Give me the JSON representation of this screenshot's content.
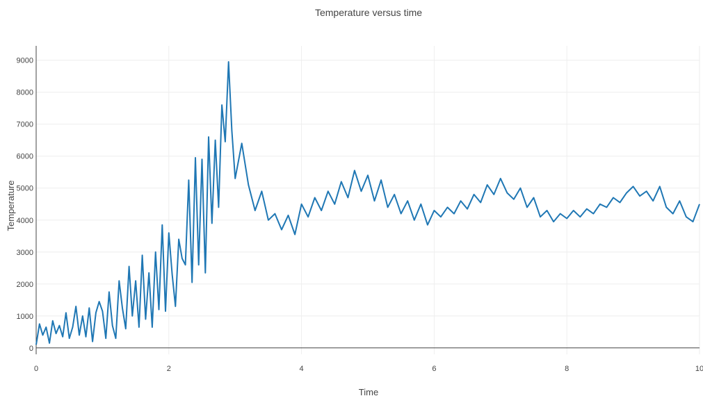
{
  "chart_data": {
    "type": "line",
    "title": "Temperature versus time",
    "xlabel": "Time",
    "ylabel": "Temperature",
    "xlim": [
      0,
      10
    ],
    "ylim": [
      -200,
      9450
    ],
    "xticks": [
      0,
      2,
      4,
      6,
      8,
      10
    ],
    "yticks": [
      0,
      1000,
      2000,
      3000,
      4000,
      5000,
      6000,
      7000,
      8000,
      9000
    ],
    "grid": true,
    "line_color": "#1f77b4",
    "series": [
      {
        "x": [
          0,
          0.05,
          0.1,
          0.15,
          0.2,
          0.25,
          0.3,
          0.35,
          0.4,
          0.45,
          0.5,
          0.55,
          0.6,
          0.65,
          0.7,
          0.75,
          0.8,
          0.85,
          0.9,
          0.95,
          1.0,
          1.05,
          1.1,
          1.15,
          1.2,
          1.25,
          1.3,
          1.35,
          1.4,
          1.45,
          1.5,
          1.55,
          1.6,
          1.65,
          1.7,
          1.75,
          1.8,
          1.85,
          1.9,
          1.95,
          2.0,
          2.05,
          2.1,
          2.15,
          2.2,
          2.25,
          2.3,
          2.35,
          2.4,
          2.45,
          2.5,
          2.55,
          2.6,
          2.65,
          2.7,
          2.75,
          2.8,
          2.85,
          2.9,
          2.95,
          3.0,
          3.1,
          3.2,
          3.3,
          3.4,
          3.5,
          3.6,
          3.7,
          3.8,
          3.9,
          4.0,
          4.1,
          4.2,
          4.3,
          4.4,
          4.5,
          4.6,
          4.7,
          4.8,
          4.9,
          5.0,
          5.1,
          5.2,
          5.3,
          5.4,
          5.5,
          5.6,
          5.7,
          5.8,
          5.9,
          6.0,
          6.1,
          6.2,
          6.3,
          6.4,
          6.5,
          6.6,
          6.7,
          6.8,
          6.9,
          7.0,
          7.1,
          7.2,
          7.3,
          7.4,
          7.5,
          7.6,
          7.7,
          7.8,
          7.9,
          8.0,
          8.1,
          8.2,
          8.3,
          8.4,
          8.5,
          8.6,
          8.7,
          8.8,
          8.9,
          9.0,
          9.1,
          9.2,
          9.3,
          9.4,
          9.5,
          9.6,
          9.7,
          9.8,
          9.9,
          10.0
        ],
        "y": [
          100,
          750,
          400,
          650,
          150,
          850,
          450,
          700,
          350,
          1100,
          300,
          650,
          1300,
          400,
          1000,
          350,
          1250,
          200,
          1100,
          1450,
          1150,
          300,
          1750,
          700,
          300,
          2100,
          1250,
          600,
          2550,
          1000,
          2100,
          650,
          2900,
          900,
          2350,
          650,
          3000,
          1200,
          3850,
          1150,
          3600,
          2300,
          1300,
          3400,
          2800,
          2600,
          5250,
          2050,
          5950,
          2600,
          5900,
          2350,
          6600,
          3900,
          6500,
          4400,
          7600,
          6450,
          8950,
          6800,
          5300,
          6400,
          5100,
          4300,
          4900,
          4000,
          4200,
          3700,
          4150,
          3550,
          4500,
          4100,
          4700,
          4300,
          4900,
          4500,
          5200,
          4700,
          5550,
          4900,
          5400,
          4600,
          5250,
          4400,
          4800,
          4200,
          4600,
          4000,
          4500,
          3850,
          4300,
          4100,
          4400,
          4200,
          4600,
          4350,
          4800,
          4550,
          5100,
          4800,
          5300,
          4850,
          4650,
          5000,
          4400,
          4700,
          4100,
          4300,
          3950,
          4200,
          4050,
          4300,
          4100,
          4350,
          4200,
          4500,
          4400,
          4700,
          4550,
          4850,
          5050,
          4750,
          4900,
          4600,
          5050,
          4400,
          4200,
          4600,
          4100,
          3950,
          4500
        ]
      }
    ]
  }
}
